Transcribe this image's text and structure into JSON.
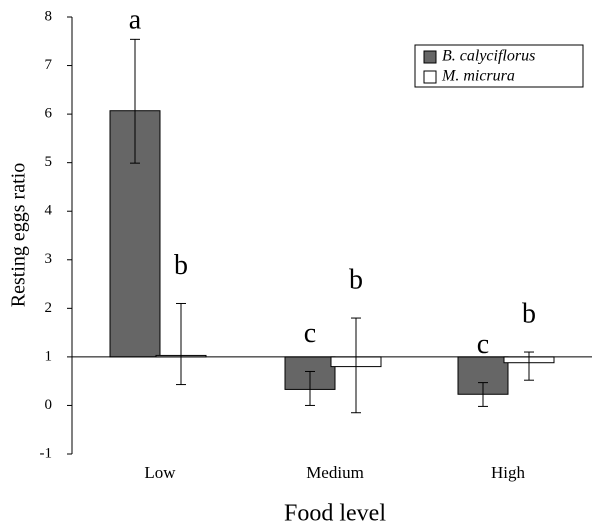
{
  "chart_data": {
    "type": "bar",
    "x_label": "Food level",
    "y_label": "Resting eggs ratio",
    "categories": [
      "Low",
      "Medium",
      "High"
    ],
    "bar_base": 1,
    "series": [
      {
        "name": "B. calyciflorus",
        "color": "#666666",
        "values": [
          6.07,
          0.33,
          0.23
        ],
        "err_minus": [
          1.08,
          0.33,
          0.25
        ],
        "err_plus": [
          1.47,
          0.37,
          0.24
        ],
        "labels": [
          "a",
          "c",
          "c"
        ]
      },
      {
        "name": "M. micrura",
        "color": "#ffffff",
        "values": [
          1.03,
          0.8,
          0.88
        ],
        "err_minus": [
          0.6,
          0.95,
          0.36
        ],
        "err_plus": [
          1.07,
          1.0,
          0.22
        ],
        "labels": [
          "b",
          "b",
          "b"
        ]
      }
    ],
    "ylim": [
      -1,
      8
    ],
    "yticks": [
      -1,
      0,
      1,
      2,
      3,
      4,
      5,
      6,
      7,
      8
    ],
    "legend": "top-right"
  }
}
